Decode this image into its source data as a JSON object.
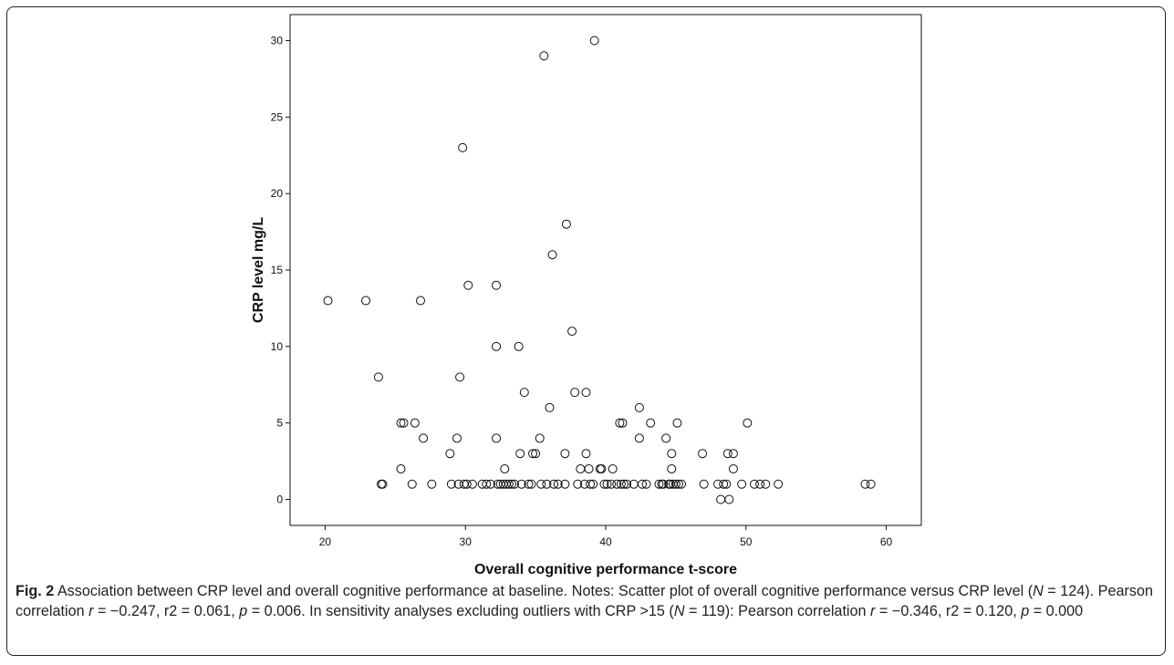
{
  "chart_data": {
    "type": "scatter",
    "xlabel": "Overall cognitive performance t-score",
    "ylabel": "CRP level mg/L",
    "xlim": [
      17.5,
      62.5
    ],
    "ylim": [
      -1.7,
      31.7
    ],
    "xticks": [
      20,
      30,
      40,
      50,
      60
    ],
    "yticks": [
      0,
      5,
      10,
      15,
      20,
      25,
      30
    ],
    "marker": "open-circle",
    "points": [
      [
        20.2,
        13
      ],
      [
        22.9,
        13
      ],
      [
        23.8,
        8
      ],
      [
        24.0,
        1
      ],
      [
        24.1,
        1
      ],
      [
        25.4,
        5
      ],
      [
        25.6,
        5
      ],
      [
        25.4,
        2
      ],
      [
        26.2,
        1
      ],
      [
        26.4,
        5
      ],
      [
        26.8,
        13
      ],
      [
        27.0,
        4
      ],
      [
        27.6,
        1
      ],
      [
        28.9,
        3
      ],
      [
        29.0,
        1
      ],
      [
        29.4,
        4
      ],
      [
        29.5,
        1
      ],
      [
        29.6,
        8
      ],
      [
        29.8,
        23
      ],
      [
        29.9,
        1
      ],
      [
        30.1,
        1
      ],
      [
        30.2,
        14
      ],
      [
        30.5,
        1
      ],
      [
        31.2,
        1
      ],
      [
        31.5,
        1
      ],
      [
        31.8,
        1
      ],
      [
        32.2,
        14
      ],
      [
        32.2,
        10
      ],
      [
        32.2,
        4
      ],
      [
        32.3,
        1
      ],
      [
        32.5,
        1
      ],
      [
        32.7,
        1
      ],
      [
        32.8,
        2
      ],
      [
        32.9,
        1
      ],
      [
        33.1,
        1
      ],
      [
        33.3,
        1
      ],
      [
        33.5,
        1
      ],
      [
        33.8,
        10
      ],
      [
        33.9,
        3
      ],
      [
        34.0,
        1
      ],
      [
        34.2,
        7
      ],
      [
        34.5,
        1
      ],
      [
        34.7,
        1
      ],
      [
        34.8,
        3
      ],
      [
        35.0,
        3
      ],
      [
        35.3,
        4
      ],
      [
        35.4,
        1
      ],
      [
        35.6,
        29
      ],
      [
        35.8,
        1
      ],
      [
        36.0,
        6
      ],
      [
        36.2,
        16
      ],
      [
        36.3,
        1
      ],
      [
        36.6,
        1
      ],
      [
        37.1,
        1
      ],
      [
        37.1,
        3
      ],
      [
        37.2,
        18
      ],
      [
        37.6,
        11
      ],
      [
        37.8,
        7
      ],
      [
        38.0,
        1
      ],
      [
        38.2,
        2
      ],
      [
        38.5,
        1
      ],
      [
        38.6,
        7
      ],
      [
        38.6,
        3
      ],
      [
        38.8,
        2
      ],
      [
        38.9,
        1
      ],
      [
        39.1,
        1
      ],
      [
        39.2,
        30
      ],
      [
        39.6,
        2
      ],
      [
        39.7,
        2
      ],
      [
        39.9,
        1
      ],
      [
        40.1,
        1
      ],
      [
        40.4,
        1
      ],
      [
        40.5,
        2
      ],
      [
        40.8,
        1
      ],
      [
        41.0,
        5
      ],
      [
        41.1,
        1
      ],
      [
        41.2,
        5
      ],
      [
        41.3,
        1
      ],
      [
        41.5,
        1
      ],
      [
        42.0,
        1
      ],
      [
        42.4,
        6
      ],
      [
        42.4,
        4
      ],
      [
        42.6,
        1
      ],
      [
        42.9,
        1
      ],
      [
        43.2,
        5
      ],
      [
        43.8,
        1
      ],
      [
        44.0,
        1
      ],
      [
        44.1,
        1
      ],
      [
        44.3,
        4
      ],
      [
        44.5,
        1
      ],
      [
        44.6,
        1
      ],
      [
        44.7,
        3
      ],
      [
        44.7,
        2
      ],
      [
        44.8,
        1
      ],
      [
        45.0,
        1
      ],
      [
        45.1,
        5
      ],
      [
        45.2,
        1
      ],
      [
        45.4,
        1
      ],
      [
        46.9,
        3
      ],
      [
        47.0,
        1
      ],
      [
        48.0,
        1
      ],
      [
        48.2,
        0
      ],
      [
        48.4,
        1
      ],
      [
        48.6,
        1
      ],
      [
        48.7,
        3
      ],
      [
        48.8,
        0
      ],
      [
        49.1,
        3
      ],
      [
        49.1,
        2
      ],
      [
        49.7,
        1
      ],
      [
        50.1,
        5
      ],
      [
        50.6,
        1
      ],
      [
        51.0,
        1
      ],
      [
        51.4,
        1
      ],
      [
        52.3,
        1
      ],
      [
        58.5,
        1
      ],
      [
        58.9,
        1
      ]
    ]
  },
  "caption": {
    "label": "Fig. 2",
    "text_1": " Association between CRP level and overall cognitive performance at baseline. Notes: Scatter plot of overall cognitive performance versus CRP level (",
    "n_var_1": "N",
    "text_2": " = 124). Pearson correlation ",
    "r_var_1": "r",
    "text_3": " = −0.247, r2 = 0.061, ",
    "p_var_1": "p",
    "text_4": " = 0.006. In sensitivity analyses excluding outliers with CRP >15 (",
    "n_var_2": "N",
    "text_5": " = 119): Pearson correlation ",
    "r_var_2": "r",
    "text_6": " = −0.346, r2 = 0.120, ",
    "p_var_2": "p",
    "text_7": " = 0.000"
  }
}
